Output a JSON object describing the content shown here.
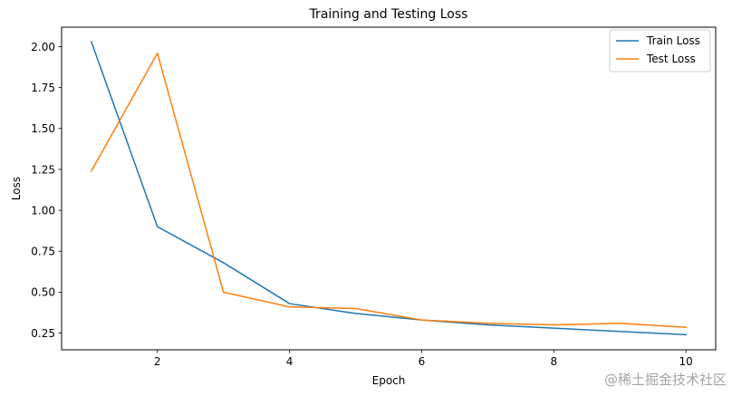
{
  "chart_data": {
    "type": "line",
    "title": "Training and Testing Loss",
    "xlabel": "Epoch",
    "ylabel": "Loss",
    "x": [
      1,
      2,
      3,
      4,
      5,
      6,
      7,
      8,
      9,
      10
    ],
    "xlim": [
      0.55,
      10.45
    ],
    "ylim": [
      0.148,
      2.119
    ],
    "xticks": [
      2,
      4,
      6,
      8,
      10
    ],
    "xtick_labels": [
      "2",
      "4",
      "6",
      "8",
      "10"
    ],
    "yticks": [
      0.25,
      0.5,
      0.75,
      1.0,
      1.25,
      1.5,
      1.75,
      2.0
    ],
    "ytick_labels": [
      "0.25",
      "0.50",
      "0.75",
      "1.00",
      "1.25",
      "1.50",
      "1.75",
      "2.00"
    ],
    "grid": false,
    "legend_position": "top-right",
    "series": [
      {
        "name": "Train Loss",
        "color": "#1f77b4",
        "values": [
          2.03,
          0.9,
          0.68,
          0.43,
          0.37,
          0.33,
          0.3,
          0.28,
          0.26,
          0.24
        ]
      },
      {
        "name": "Test Loss",
        "color": "#ff7f0e",
        "values": [
          1.24,
          1.96,
          0.5,
          0.41,
          0.4,
          0.33,
          0.31,
          0.3,
          0.31,
          0.285
        ]
      }
    ]
  },
  "watermark": "@稀土掘金技术社区"
}
